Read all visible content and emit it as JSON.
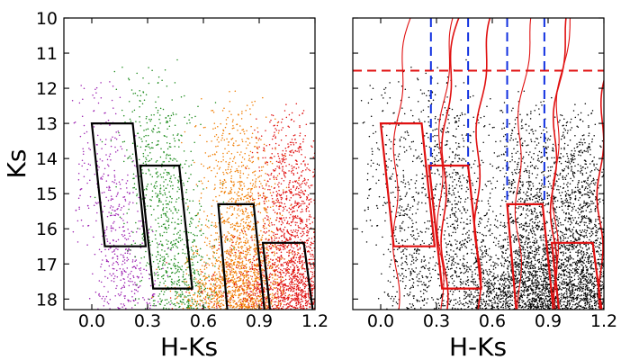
{
  "chart_data": [
    {
      "type": "scatter",
      "xlabel": "H-Ks",
      "ylabel": "Ks",
      "xlim": [
        -0.15,
        1.2
      ],
      "ylim": [
        18.3,
        10
      ],
      "y_inverted": true,
      "xticks": [
        "0.0",
        "0.3",
        "0.6",
        "0.9",
        "1.2"
      ],
      "yticks": [
        "10",
        "11",
        "12",
        "13",
        "14",
        "15",
        "16",
        "17",
        "18"
      ],
      "point_colors": {
        "group1": "#9b1fb0",
        "group2": "#1a8a1a",
        "group3": "#f07c00",
        "group4": "#e01010"
      },
      "boxes": [
        {
          "corners": [
            [
              0.0,
              13.0
            ],
            [
              0.22,
              13.0
            ],
            [
              0.29,
              16.5
            ],
            [
              0.07,
              16.5
            ]
          ],
          "color": "#000000"
        },
        {
          "corners": [
            [
              0.26,
              14.2
            ],
            [
              0.47,
              14.2
            ],
            [
              0.54,
              17.7
            ],
            [
              0.33,
              17.7
            ]
          ],
          "color": "#000000"
        },
        {
          "corners": [
            [
              0.68,
              15.3
            ],
            [
              0.87,
              15.3
            ],
            [
              0.93,
              18.4
            ],
            [
              0.73,
              18.4
            ]
          ],
          "color": "#000000"
        },
        {
          "corners": [
            [
              0.92,
              16.4
            ],
            [
              1.14,
              16.4
            ],
            [
              1.19,
              18.4
            ],
            [
              0.96,
              18.4
            ]
          ],
          "color": "#000000"
        }
      ]
    },
    {
      "type": "scatter",
      "xlabel": "H-Ks",
      "ylabel": "",
      "xlim": [
        -0.15,
        1.2
      ],
      "ylim": [
        18.3,
        10
      ],
      "y_inverted": true,
      "xticks": [
        "0.0",
        "0.3",
        "0.6",
        "0.9",
        "1.2"
      ],
      "point_color": "#000000",
      "boxes": [
        {
          "corners": [
            [
              0.0,
              13.0
            ],
            [
              0.22,
              13.0
            ],
            [
              0.29,
              16.5
            ],
            [
              0.07,
              16.5
            ]
          ],
          "color": "#e01010"
        },
        {
          "corners": [
            [
              0.26,
              14.2
            ],
            [
              0.47,
              14.2
            ],
            [
              0.54,
              17.7
            ],
            [
              0.33,
              17.7
            ]
          ],
          "color": "#e01010"
        },
        {
          "corners": [
            [
              0.68,
              15.3
            ],
            [
              0.87,
              15.3
            ],
            [
              0.93,
              18.4
            ],
            [
              0.73,
              18.4
            ]
          ],
          "color": "#e01010"
        },
        {
          "corners": [
            [
              0.92,
              16.4
            ],
            [
              1.14,
              16.4
            ],
            [
              1.19,
              18.4
            ],
            [
              0.96,
              18.4
            ]
          ],
          "color": "#e01010"
        }
      ],
      "horizontal_lines": [
        {
          "y": 11.5,
          "color": "#e01010",
          "style": "dashed"
        }
      ],
      "vertical_lines": [
        {
          "x": 0.27,
          "y_top": 10,
          "y_bottom": 14.3,
          "color": "#1030e0",
          "style": "dashed"
        },
        {
          "x": 0.47,
          "y_top": 10,
          "y_bottom": 14.3,
          "color": "#1030e0",
          "style": "dashed"
        },
        {
          "x": 0.68,
          "y_top": 10,
          "y_bottom": 15.3,
          "color": "#1030e0",
          "style": "dashed"
        },
        {
          "x": 0.88,
          "y_top": 10,
          "y_bottom": 15.3,
          "color": "#1030e0",
          "style": "dashed"
        }
      ],
      "curves_color": "#e01010"
    }
  ]
}
